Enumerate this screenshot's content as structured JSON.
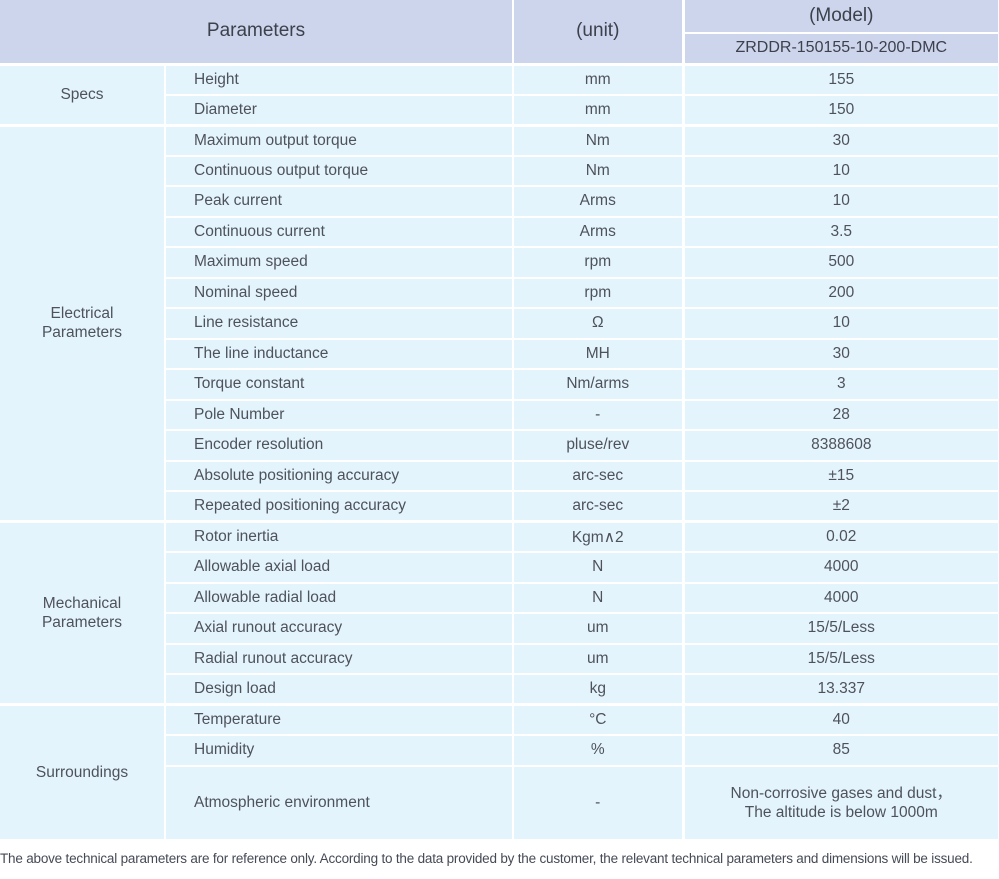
{
  "header": {
    "parameters_label": "Parameters",
    "unit_label": "(unit)",
    "model_label": "(Model)",
    "model_value": "ZRDDR-150155-10-200-DMC"
  },
  "groups": [
    {
      "label": "Specs",
      "rows": [
        {
          "name": "Height",
          "unit": "mm",
          "value": "155"
        },
        {
          "name": "Diameter",
          "unit": "mm",
          "value": "150"
        }
      ]
    },
    {
      "label": "Electrical\nParameters",
      "rows": [
        {
          "name": "Maximum output torque",
          "unit": "Nm",
          "value": "30"
        },
        {
          "name": "Continuous output torque",
          "unit": "Nm",
          "value": "10"
        },
        {
          "name": "Peak current",
          "unit": "Arms",
          "value": "10"
        },
        {
          "name": "Continuous current",
          "unit": "Arms",
          "value": "3.5"
        },
        {
          "name": "Maximum speed",
          "unit": "rpm",
          "value": "500"
        },
        {
          "name": "Nominal speed",
          "unit": "rpm",
          "value": "200"
        },
        {
          "name": "Line resistance",
          "unit": "Ω",
          "value": "10"
        },
        {
          "name": "The line inductance",
          "unit": "MH",
          "value": "30"
        },
        {
          "name": "Torque constant",
          "unit": "Nm/arms",
          "value": "3"
        },
        {
          "name": "Pole Number",
          "unit": "-",
          "value": "28"
        },
        {
          "name": "Encoder resolution",
          "unit": "pluse/rev",
          "value": "8388608"
        },
        {
          "name": "Absolute positioning accuracy",
          "unit": "arc-sec",
          "value": "±15"
        },
        {
          "name": "Repeated positioning accuracy",
          "unit": "arc-sec",
          "value": "±2"
        }
      ]
    },
    {
      "label": "Mechanical\nParameters",
      "rows": [
        {
          "name": "Rotor inertia",
          "unit": "Kgm∧2",
          "value": "0.02"
        },
        {
          "name": "Allowable axial load",
          "unit": "N",
          "value": "4000"
        },
        {
          "name": "Allowable radial load",
          "unit": "N",
          "value": "4000"
        },
        {
          "name": "Axial runout accuracy",
          "unit": "um",
          "value": "15/5/Less"
        },
        {
          "name": "Radial runout accuracy",
          "unit": "um",
          "value": "15/5/Less"
        },
        {
          "name": "Design load",
          "unit": "kg",
          "value": "13.337"
        }
      ]
    },
    {
      "label": "Surroundings",
      "rows": [
        {
          "name": "Temperature",
          "unit": "°C",
          "value": "40"
        },
        {
          "name": "Humidity",
          "unit": "%",
          "value": "85"
        },
        {
          "name": "Atmospheric environment",
          "unit": "-",
          "value": "Non-corrosive gases and dust，\nThe altitude is below 1000m"
        }
      ]
    }
  ],
  "footer": {
    "note": "The above technical parameters are for reference only. According to the data provided by the customer, the relevant technical parameters and dimensions will be issued."
  },
  "colors": {
    "header_bg": "#ccd5ec",
    "row_bg": "#e4f4fc",
    "separator": "#ffffff",
    "text": "#4e525b"
  }
}
